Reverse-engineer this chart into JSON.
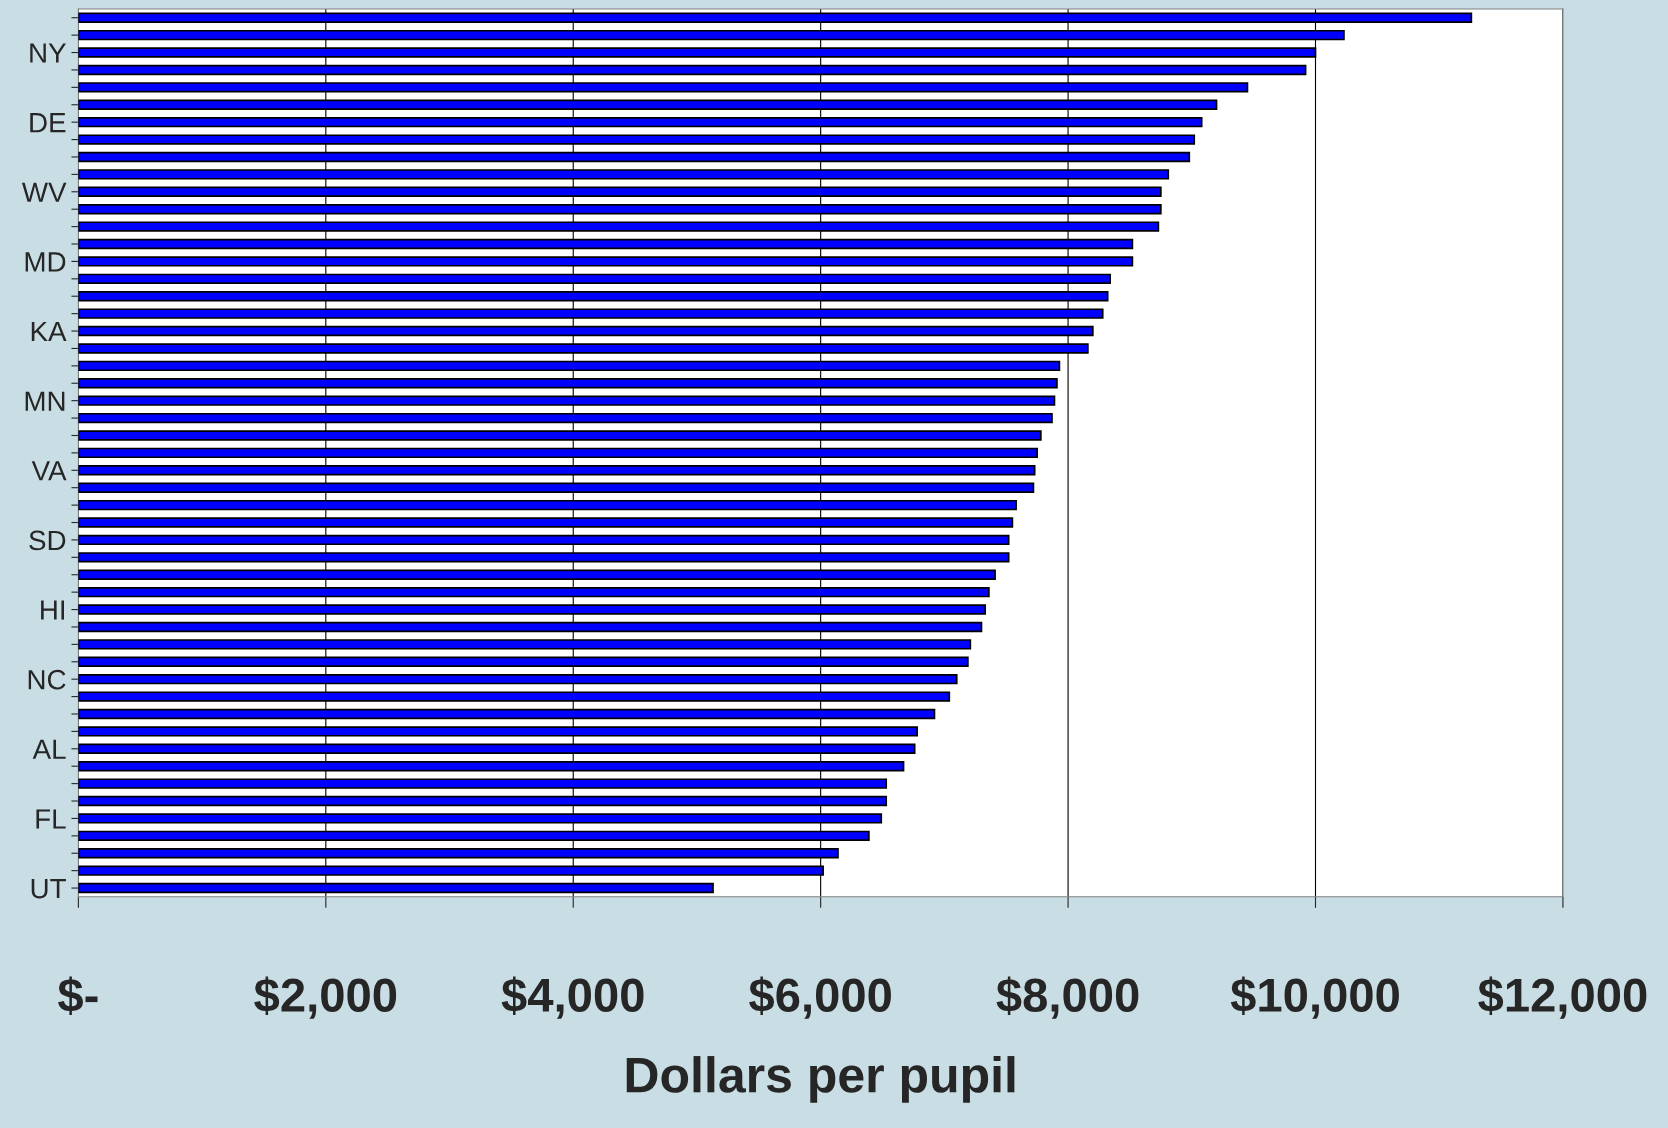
{
  "chart_data": {
    "type": "bar",
    "orientation": "horizontal",
    "xlabel": "Dollars per pupil",
    "categories": [
      null,
      null,
      "NY",
      null,
      null,
      null,
      "DE",
      null,
      null,
      null,
      "WV",
      null,
      null,
      null,
      "MD",
      null,
      null,
      null,
      "KA",
      null,
      null,
      null,
      "MN",
      null,
      null,
      null,
      "VA",
      null,
      null,
      null,
      "SD",
      null,
      null,
      null,
      "HI",
      null,
      null,
      null,
      "NC",
      null,
      null,
      null,
      "AL",
      null,
      null,
      null,
      "FL",
      null,
      null,
      null,
      "UT"
    ],
    "values": [
      11260,
      10230,
      10000,
      9920,
      9450,
      9200,
      9080,
      9020,
      8980,
      8810,
      8750,
      8750,
      8730,
      8520,
      8520,
      8340,
      8320,
      8280,
      8200,
      8160,
      7930,
      7910,
      7890,
      7870,
      7780,
      7750,
      7730,
      7720,
      7580,
      7550,
      7520,
      7520,
      7410,
      7360,
      7330,
      7300,
      7210,
      7190,
      7100,
      7040,
      6920,
      6780,
      6760,
      6670,
      6530,
      6530,
      6490,
      6390,
      6140,
      6020,
      5130
    ],
    "color": "#0000ff",
    "xlim": [
      0,
      12000
    ],
    "xticks": [
      {
        "value": 0,
        "label": "$-"
      },
      {
        "value": 2000,
        "label": "$2,000"
      },
      {
        "value": 4000,
        "label": "$4,000"
      },
      {
        "value": 6000,
        "label": "$6,000"
      },
      {
        "value": 8000,
        "label": "$8,000"
      },
      {
        "value": 10000,
        "label": "$10,000"
      },
      {
        "value": 12000,
        "label": "$12,000"
      }
    ],
    "grid": "x"
  }
}
